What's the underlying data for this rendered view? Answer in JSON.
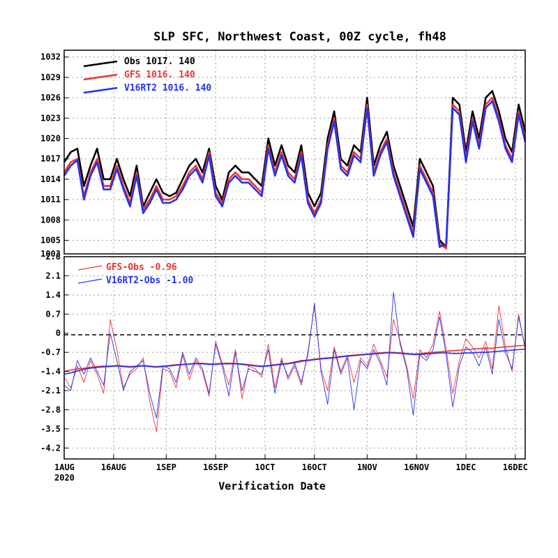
{
  "chart_data": [
    {
      "type": "line",
      "title": "SLP SFC, Northwest Coast, 00Z cycle, fh48",
      "ylim": [
        1003,
        1033
      ],
      "yticks": [
        1005,
        1008,
        1011,
        1014,
        1017,
        1020,
        1023,
        1026,
        1029,
        1032
      ],
      "ytick_labels": [
        "1005",
        "1008",
        "1011",
        "1014",
        "1017",
        "1020",
        "1023",
        "1026",
        "1029",
        "1032"
      ],
      "ybottom_label": "1003",
      "xlim": [
        0,
        140
      ],
      "grid": true,
      "legend_position": "top-left",
      "legend": [
        {
          "name": "Obs",
          "stats": "1017.  140",
          "color": "#000000"
        },
        {
          "name": "GFS",
          "stats": "1016.  140",
          "color": "#ee3333"
        },
        {
          "name": "V16RT2",
          "stats": "1016.  140",
          "color": "#2233ee"
        }
      ],
      "x_days": [
        0,
        2,
        4,
        6,
        8,
        10,
        12,
        14,
        16,
        18,
        20,
        22,
        24,
        26,
        28,
        30,
        32,
        34,
        36,
        38,
        40,
        42,
        44,
        46,
        48,
        50,
        52,
        54,
        56,
        58,
        60,
        62,
        64,
        66,
        68,
        70,
        72,
        74,
        76,
        78,
        80,
        82,
        84,
        86,
        88,
        90,
        92,
        94,
        96,
        98,
        100,
        102,
        104,
        106,
        108,
        110,
        112,
        114,
        116,
        118,
        120,
        122,
        124,
        126,
        128,
        130,
        132,
        134,
        136,
        138,
        140
      ],
      "series": [
        {
          "name": "Obs",
          "color": "#000000",
          "values": [
            1016.5,
            1018,
            1018.5,
            1013,
            1016,
            1018.5,
            1014,
            1014,
            1017,
            1014,
            1011.5,
            1016,
            1010,
            1012,
            1014,
            1012,
            1011.5,
            1012,
            1014,
            1016,
            1017,
            1015,
            1018.5,
            1013,
            1011,
            1015,
            1016,
            1015,
            1015,
            1014,
            1013,
            1020,
            1016,
            1019,
            1016,
            1015,
            1019,
            1012,
            1010,
            1012,
            1020,
            1024,
            1017,
            1016,
            1019,
            1018,
            1026,
            1016,
            1019,
            1021,
            1016,
            1013,
            1010,
            1007,
            1017,
            1015,
            1013,
            1005,
            1004,
            1026,
            1025,
            1018,
            1024,
            1020,
            1026,
            1027,
            1024,
            1020,
            1018,
            1025,
            1021
          ]
        },
        {
          "name": "GFS",
          "color": "#ee3333",
          "values": [
            1015,
            1016.5,
            1017,
            1011.5,
            1015,
            1017,
            1013,
            1013,
            1016,
            1013,
            1010.5,
            1015,
            1009.5,
            1011,
            1013,
            1011,
            1011,
            1011.5,
            1013,
            1015,
            1016,
            1014,
            1018,
            1012,
            1010.5,
            1014,
            1015,
            1014,
            1014,
            1013,
            1012,
            1019,
            1015,
            1018,
            1015,
            1014,
            1018,
            1011,
            1009,
            1011,
            1019,
            1023,
            1016,
            1015,
            1018,
            1017,
            1025,
            1015,
            1018,
            1020,
            1015,
            1012,
            1009,
            1006,
            1016,
            1014,
            1012,
            1004.5,
            1003.8,
            1025,
            1024,
            1017,
            1023,
            1019,
            1025,
            1026,
            1023,
            1019,
            1017,
            1024,
            1020
          ]
        },
        {
          "name": "V16RT2",
          "color": "#2233ee",
          "values": [
            1014.5,
            1016,
            1016.8,
            1011,
            1014.5,
            1016.5,
            1012.5,
            1012.5,
            1015.5,
            1012.5,
            1010,
            1014.5,
            1009,
            1010.5,
            1012.5,
            1010.5,
            1010.5,
            1011,
            1012.5,
            1014.5,
            1015.5,
            1013.5,
            1017.5,
            1011.5,
            1010,
            1013.5,
            1014.5,
            1013.5,
            1013.5,
            1012.5,
            1011.5,
            1018.5,
            1014.5,
            1017.5,
            1014.5,
            1013.5,
            1017.5,
            1010.5,
            1008.5,
            1010.5,
            1018.5,
            1022.5,
            1015.5,
            1014.5,
            1017.5,
            1016.5,
            1024.5,
            1014.5,
            1017.5,
            1019.5,
            1014.5,
            1011.5,
            1008.5,
            1005.5,
            1015.5,
            1013.5,
            1011.5,
            1004,
            1004.5,
            1024.5,
            1023.5,
            1016.5,
            1022.5,
            1018.5,
            1024.5,
            1025.5,
            1022.5,
            1018.5,
            1016.5,
            1023.5,
            1019.5
          ]
        }
      ]
    },
    {
      "type": "line",
      "ylim": [
        -4.6,
        2.8
      ],
      "yticks": [
        -4.2,
        -3.5,
        -2.8,
        -2.1,
        -1.4,
        -0.7,
        0,
        0.7,
        1.4,
        2.1
      ],
      "ytick_labels": [
        "-4.2",
        "-3.5",
        "-2.8",
        "-2.1",
        "-1.4",
        "-0.7",
        "0",
        "0.7",
        "1.4",
        "2.1"
      ],
      "ytop_label": "2.8",
      "xlim": [
        0,
        140
      ],
      "xticks": [
        0,
        15,
        31,
        46,
        61,
        76,
        92,
        107,
        122,
        137
      ],
      "xtick_labels": [
        "1AUG",
        "16AUG",
        "1SEP",
        "16SEP",
        "1OCT",
        "16OCT",
        "1NOV",
        "16NOV",
        "1DEC",
        "16DEC"
      ],
      "xtick_sublabel": "2020",
      "xlabel": "Verification Date",
      "grid": true,
      "legend_position": "top-left",
      "legend": [
        {
          "name": "GFS-Obs",
          "stats": "-0.96",
          "color": "#ee3333"
        },
        {
          "name": "V16RT2-Obs",
          "stats": "-1.00",
          "color": "#2233ee"
        }
      ],
      "x_days": [
        0,
        2,
        4,
        6,
        8,
        10,
        12,
        14,
        16,
        18,
        20,
        22,
        24,
        26,
        28,
        30,
        32,
        34,
        36,
        38,
        40,
        42,
        44,
        46,
        48,
        50,
        52,
        54,
        56,
        58,
        60,
        62,
        64,
        66,
        68,
        70,
        72,
        74,
        76,
        78,
        80,
        82,
        84,
        86,
        88,
        90,
        92,
        94,
        96,
        98,
        100,
        102,
        104,
        106,
        108,
        110,
        112,
        114,
        116,
        118,
        120,
        122,
        124,
        126,
        128,
        130,
        132,
        134,
        136,
        138,
        140
      ],
      "series": [
        {
          "name": "GFS-Obs",
          "color": "#ee3333",
          "values": [
            -1.6,
            -2.0,
            -1.2,
            -1.8,
            -1.0,
            -1.5,
            -2.2,
            0.5,
            -0.6,
            -2.0,
            -1.5,
            -1.3,
            -0.9,
            -2.5,
            -3.6,
            -1.3,
            -1.4,
            -2.0,
            -0.8,
            -1.7,
            -1.0,
            -1.4,
            -2.3,
            -0.3,
            -1.1,
            -1.9,
            -0.6,
            -2.4,
            -1.2,
            -1.3,
            -1.6,
            -0.4,
            -2.0,
            -0.9,
            -1.7,
            -1.2,
            -1.9,
            -0.7,
            1.0,
            -1.3,
            -2.1,
            -0.5,
            -1.4,
            -0.8,
            -1.8,
            -0.9,
            -1.2,
            -0.4,
            -1.0,
            -1.6,
            0.5,
            -0.3,
            -1.2,
            -2.4,
            -0.6,
            -0.9,
            -0.4,
            0.8,
            -0.6,
            -2.2,
            -1.0,
            -0.2,
            -0.5,
            -0.9,
            -0.3,
            -1.3,
            1.0,
            -0.5,
            -1.4,
            0.7,
            -0.6
          ]
        },
        {
          "name": "V16RT2-Obs",
          "color": "#2233ee",
          "values": [
            -1.9,
            -2.1,
            -1.0,
            -1.5,
            -0.9,
            -1.4,
            -1.9,
            0.0,
            -1.0,
            -2.1,
            -1.4,
            -1.2,
            -1.0,
            -2.2,
            -3.1,
            -1.2,
            -1.3,
            -1.8,
            -0.7,
            -1.5,
            -0.9,
            -1.3,
            -2.2,
            -0.4,
            -1.2,
            -2.3,
            -0.7,
            -2.1,
            -1.3,
            -1.4,
            -1.5,
            -0.6,
            -2.2,
            -1.0,
            -1.6,
            -1.1,
            -1.8,
            -0.8,
            1.1,
            -1.4,
            -2.6,
            -0.6,
            -1.5,
            -0.9,
            -2.8,
            -1.0,
            -1.3,
            -0.6,
            -1.1,
            -1.9,
            1.5,
            -0.4,
            -1.3,
            -3.0,
            -0.8,
            -1.0,
            -0.6,
            0.6,
            -0.8,
            -2.7,
            -1.2,
            -0.5,
            -0.7,
            -1.2,
            -0.5,
            -1.5,
            0.5,
            -0.7,
            -1.3,
            0.6,
            -0.5
          ]
        },
        {
          "name": "GFS-Obs running mean",
          "color": "#ee3333",
          "values": [
            -1.4,
            -1.35,
            -1.3,
            -1.28,
            -1.25,
            -1.22,
            -1.2,
            -1.2,
            -1.18,
            -1.2,
            -1.22,
            -1.2,
            -1.18,
            -1.2,
            -1.22,
            -1.2,
            -1.18,
            -1.15,
            -1.14,
            -1.12,
            -1.1,
            -1.1,
            -1.12,
            -1.12,
            -1.1,
            -1.1,
            -1.1,
            -1.12,
            -1.15,
            -1.18,
            -1.2,
            -1.18,
            -1.15,
            -1.12,
            -1.1,
            -1.05,
            -1.0,
            -0.98,
            -0.95,
            -0.92,
            -0.9,
            -0.88,
            -0.85,
            -0.82,
            -0.8,
            -0.78,
            -0.76,
            -0.74,
            -0.72,
            -0.7,
            -0.7,
            -0.72,
            -0.74,
            -0.76,
            -0.75,
            -0.72,
            -0.7,
            -0.68,
            -0.66,
            -0.64,
            -0.62,
            -0.6,
            -0.58,
            -0.56,
            -0.55,
            -0.55,
            -0.52,
            -0.5,
            -0.48,
            -0.46,
            -0.45
          ]
        },
        {
          "name": "V16RT2-Obs running mean",
          "color": "#2233ee",
          "values": [
            -1.5,
            -1.45,
            -1.38,
            -1.32,
            -1.28,
            -1.25,
            -1.23,
            -1.22,
            -1.2,
            -1.22,
            -1.24,
            -1.22,
            -1.2,
            -1.22,
            -1.24,
            -1.22,
            -1.2,
            -1.17,
            -1.15,
            -1.13,
            -1.12,
            -1.12,
            -1.14,
            -1.14,
            -1.12,
            -1.12,
            -1.12,
            -1.14,
            -1.17,
            -1.2,
            -1.22,
            -1.2,
            -1.17,
            -1.14,
            -1.12,
            -1.08,
            -1.03,
            -1.0,
            -0.97,
            -0.94,
            -0.92,
            -0.9,
            -0.87,
            -0.84,
            -0.82,
            -0.8,
            -0.78,
            -0.76,
            -0.74,
            -0.72,
            -0.72,
            -0.74,
            -0.76,
            -0.78,
            -0.78,
            -0.76,
            -0.74,
            -0.72,
            -0.72,
            -0.74,
            -0.74,
            -0.72,
            -0.72,
            -0.7,
            -0.7,
            -0.68,
            -0.66,
            -0.64,
            -0.62,
            -0.6,
            -0.58
          ]
        }
      ]
    }
  ]
}
